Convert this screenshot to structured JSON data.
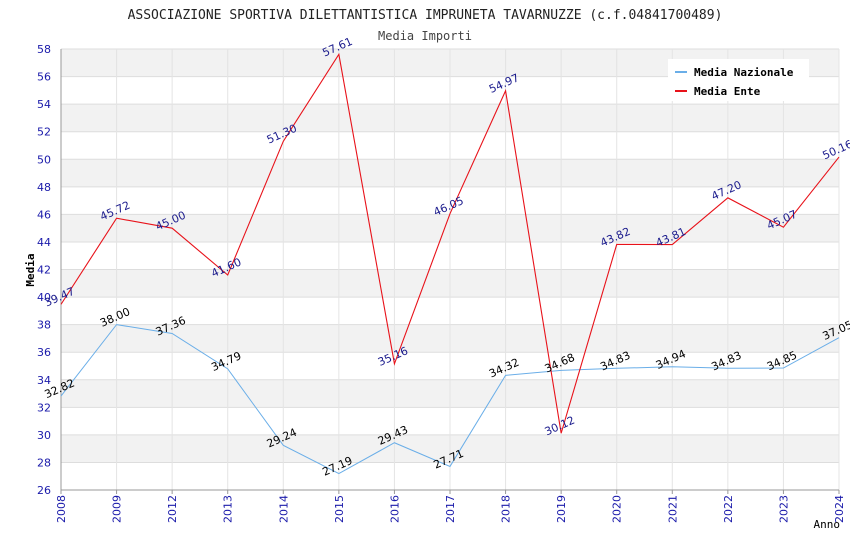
{
  "chart_data": {
    "type": "line",
    "title": "ASSOCIAZIONE SPORTIVA DILETTANTISTICA IMPRUNETA TAVARNUZZE (c.f.04841700489)",
    "subtitle": "Media Importi",
    "xlabel": "Anno",
    "ylabel": "Media",
    "ylim": [
      26,
      58
    ],
    "yticks": [
      "26",
      "28",
      "30",
      "32",
      "34",
      "36",
      "38",
      "40",
      "42",
      "44",
      "46",
      "48",
      "50",
      "52",
      "54",
      "56",
      "58"
    ],
    "categories": [
      "2008",
      "2009",
      "2012",
      "2013",
      "2014",
      "2015",
      "2016",
      "2017",
      "2018",
      "2019",
      "2020",
      "2021",
      "2022",
      "2023",
      "2024"
    ],
    "grid": true,
    "legend_position": "top-right",
    "series": [
      {
        "name": "Media Nazionale",
        "color": "#6aaee8",
        "label_color": "#000000",
        "values": [
          32.82,
          38.0,
          37.36,
          34.79,
          29.24,
          27.19,
          29.43,
          27.71,
          34.32,
          34.68,
          34.83,
          34.94,
          34.83,
          34.85,
          37.05
        ],
        "labels": [
          "32.82",
          "38.00",
          "37.36",
          "34.79",
          "29.24",
          "27.19",
          "29.43",
          "27.71",
          "34.32",
          "34.68",
          "34.83",
          "34.94",
          "34.83",
          "34.85",
          "37.05"
        ]
      },
      {
        "name": "Media Ente",
        "color": "#e8121a",
        "label_color": "#1a1a8c",
        "values": [
          39.47,
          45.72,
          45.0,
          41.6,
          51.3,
          57.61,
          35.16,
          46.05,
          54.97,
          30.12,
          43.82,
          43.81,
          47.2,
          45.07,
          50.16
        ],
        "labels": [
          "39.47",
          "45.72",
          "45.00",
          "41.60",
          "51.30",
          "57.61",
          "35.16",
          "46.05",
          "54.97",
          "30.12",
          "43.82",
          "43.81",
          "47.20",
          "45.07",
          "50.16"
        ]
      }
    ]
  }
}
